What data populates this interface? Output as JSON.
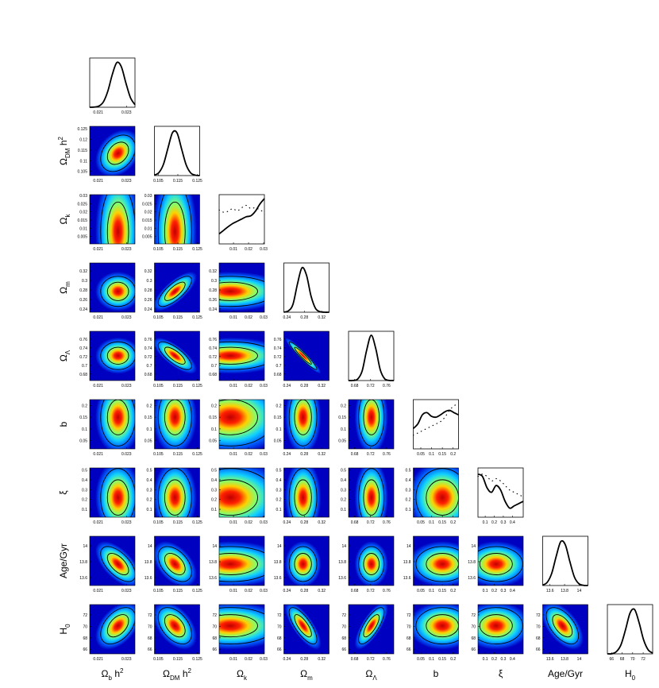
{
  "chart_data": {
    "type": "corner",
    "params": [
      {
        "label": {
          "main": "Ω",
          "sub": "b",
          "tail": " h",
          "sup": "2"
        },
        "lim": [
          0.0204,
          0.0236
        ],
        "xticks": [
          0.021,
          0.023
        ],
        "yticks": [],
        "mean": 0.0224,
        "sigma": 0.0005,
        "density": [
          0,
          0.004,
          0.025,
          0.115,
          0.355,
          0.726,
          0.987,
          0.891,
          0.534,
          0.212,
          0.056
        ]
      },
      {
        "label": {
          "main": "Ω",
          "sub": "DM",
          "tail": " h",
          "sup": "2"
        },
        "lim": [
          0.103,
          0.1262
        ],
        "xticks": [
          0.105,
          0.115,
          0.125
        ],
        "yticks": [
          0.105,
          0.11,
          0.115,
          0.12,
          0.125
        ],
        "mean": 0.1135,
        "sigma": 0.0035,
        "density": [
          0.011,
          0.067,
          0.25,
          0.61,
          0.95,
          0.94,
          0.59,
          0.24,
          0.06,
          0.01,
          0
        ]
      },
      {
        "label": {
          "main": "Ω",
          "sub": "k"
        },
        "lim": [
          0.0005,
          0.0305
        ],
        "xticks": [
          0.01,
          0.02,
          0.03
        ],
        "yticks": [
          0.005,
          0.01,
          0.015,
          0.02,
          0.025,
          0.03
        ],
        "mean": 0.008,
        "sigma": 0.012,
        "density": [
          0.22,
          0.3,
          0.38,
          0.45,
          0.5,
          0.55,
          0.6,
          0.62,
          0.72,
          0.88,
          1.0
        ],
        "likelihood": [
          0.75,
          0.7,
          0.72,
          0.78,
          0.73,
          0.8,
          0.85,
          0.78,
          0.8,
          0.75,
          0.7
        ]
      },
      {
        "label": {
          "main": "Ω",
          "sub": "m"
        },
        "lim": [
          0.233,
          0.337
        ],
        "xticks": [
          0.24,
          0.28,
          0.32
        ],
        "yticks": [
          0.24,
          0.26,
          0.28,
          0.3,
          0.32
        ],
        "mean": 0.277,
        "sigma": 0.013,
        "density": [
          0.003,
          0.03,
          0.17,
          0.62,
          0.98,
          0.82,
          0.36,
          0.085,
          0.012,
          0,
          0
        ]
      },
      {
        "label": {
          "main": "Ω",
          "sub": "Λ"
        },
        "lim": [
          0.665,
          0.778
        ],
        "xticks": [
          0.68,
          0.72,
          0.76
        ],
        "yticks": [
          0.68,
          0.7,
          0.72,
          0.74,
          0.76
        ],
        "mean": 0.722,
        "sigma": 0.013,
        "density": [
          0,
          0.002,
          0.03,
          0.21,
          0.67,
          1.0,
          0.71,
          0.24,
          0.037,
          0.003,
          0
        ]
      },
      {
        "label": {
          "main": "b"
        },
        "lim": [
          0.015,
          0.225
        ],
        "xticks": [
          0.05,
          0.1,
          0.15,
          0.2
        ],
        "yticks": [
          0.05,
          0.1,
          0.15,
          0.2
        ],
        "mean": 0.15,
        "sigma": 0.05,
        "density": [
          0.45,
          0.55,
          0.75,
          0.8,
          0.72,
          0.7,
          0.75,
          0.82,
          0.85,
          0.8,
          0.75
        ],
        "likelihood": [
          0.3,
          0.35,
          0.4,
          0.45,
          0.5,
          0.55,
          0.6,
          0.7,
          0.85,
          0.95,
          1.0
        ]
      },
      {
        "label": {
          "main": "ξ"
        },
        "lim": [
          0.02,
          0.52
        ],
        "xticks": [
          0.1,
          0.2,
          0.3,
          0.4
        ],
        "yticks": [
          0.1,
          0.2,
          0.3,
          0.4,
          0.5
        ],
        "mean": 0.22,
        "sigma": 0.12,
        "density": [
          0.95,
          0.9,
          0.65,
          0.55,
          0.7,
          0.6,
          0.35,
          0.2,
          0.25,
          0.3,
          0.35
        ],
        "likelihood": [
          0.9,
          0.95,
          0.9,
          0.8,
          0.85,
          0.8,
          0.7,
          0.6,
          0.55,
          0.5,
          0.45
        ]
      },
      {
        "label": {
          "main": "Age/Gyr"
        },
        "lim": [
          13.5,
          14.12
        ],
        "xticks": [
          13.6,
          13.8,
          14
        ],
        "yticks": [
          13.6,
          13.8,
          14
        ],
        "mean": 13.77,
        "sigma": 0.09,
        "density": [
          0.011,
          0.07,
          0.27,
          0.65,
          0.97,
          0.9,
          0.53,
          0.19,
          0.04,
          0.005,
          0
        ]
      },
      {
        "label": {
          "main": "H",
          "sub": "0"
        },
        "lim": [
          65.2,
          73.8
        ],
        "xticks": [
          66,
          68,
          70,
          72
        ],
        "yticks": [
          66,
          68,
          70,
          72
        ],
        "mean": 70.1,
        "sigma": 1.3,
        "density": [
          0,
          0.003,
          0.05,
          0.2,
          0.53,
          0.9,
          0.98,
          0.69,
          0.31,
          0.09,
          0.017
        ]
      }
    ],
    "correlation": [
      [],
      [
        0.3
      ],
      [
        0,
        0
      ],
      [
        0,
        0.75,
        0
      ],
      [
        0,
        -0.75,
        0,
        -0.95
      ],
      [
        0,
        0,
        0,
        0,
        0
      ],
      [
        0,
        0,
        0,
        0,
        0,
        0
      ],
      [
        -0.6,
        -0.45,
        0,
        0,
        0,
        0,
        0
      ],
      [
        0.45,
        -0.45,
        0,
        -0.75,
        0.75,
        0,
        0,
        -0.55
      ]
    ]
  }
}
